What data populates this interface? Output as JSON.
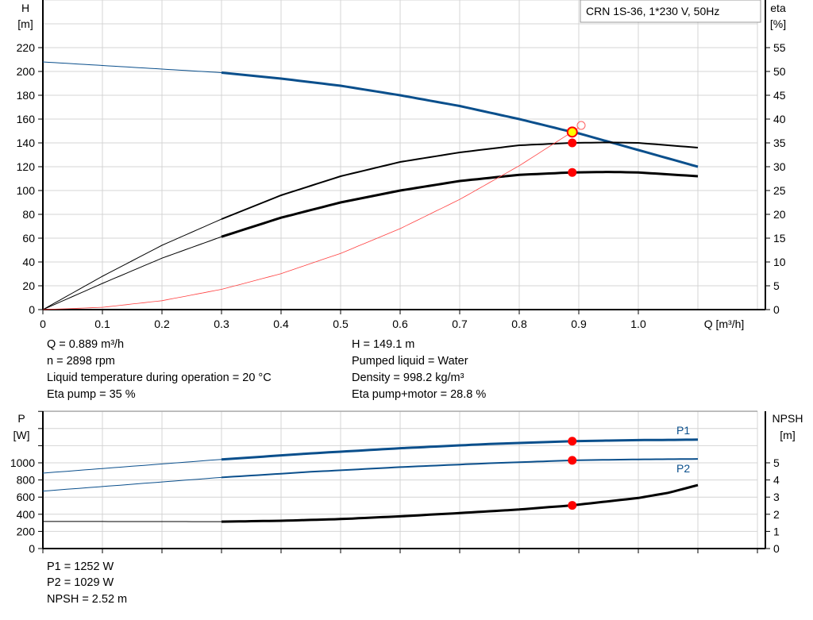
{
  "chart_data": [
    {
      "type": "line",
      "legend_box": "CRN 1S-36, 1*230 V, 50Hz",
      "xlabel": "Q [m³/h]",
      "xlim": [
        0,
        1.2
      ],
      "xticks": [
        "0",
        "0.1",
        "0.2",
        "0.3",
        "0.4",
        "0.5",
        "0.6",
        "0.7",
        "0.8",
        "0.9",
        "1.0"
      ],
      "y_left": {
        "label": "H",
        "unit": "[m]",
        "lim": [
          0,
          240
        ],
        "ticks": [
          "0",
          "20",
          "40",
          "60",
          "80",
          "100",
          "120",
          "140",
          "160",
          "180",
          "200",
          "220"
        ]
      },
      "y_right": {
        "label": "eta",
        "unit": "[%]",
        "lim": [
          0,
          60
        ],
        "ticks": [
          "0",
          "5",
          "10",
          "15",
          "20",
          "25",
          "30",
          "35",
          "40",
          "45",
          "50",
          "55"
        ]
      },
      "grid": true,
      "series": [
        {
          "axis": "left",
          "color": "#0a4f8c",
          "x": [
            0,
            0.1,
            0.2,
            0.3,
            0.4,
            0.5,
            0.6,
            0.7,
            0.8,
            0.889,
            0.9,
            1.0,
            1.1
          ],
          "y": [
            208,
            205,
            202,
            199,
            194,
            188,
            180,
            171,
            160,
            149.1,
            148,
            134,
            120
          ]
        },
        {
          "axis": "right",
          "color": "#000000",
          "x": [
            0,
            0.1,
            0.2,
            0.3,
            0.4,
            0.5,
            0.6,
            0.7,
            0.8,
            0.889,
            0.95,
            1.0,
            1.1
          ],
          "y": [
            0,
            7,
            13.5,
            19,
            24,
            28,
            31,
            33,
            34.5,
            35,
            35.1,
            35,
            34
          ]
        },
        {
          "axis": "right",
          "color": "#000000",
          "x": [
            0,
            0.1,
            0.2,
            0.3,
            0.4,
            0.5,
            0.6,
            0.7,
            0.8,
            0.889,
            0.95,
            1.0,
            1.1
          ],
          "y": [
            0,
            5.5,
            10.8,
            15.3,
            19.3,
            22.5,
            25,
            27,
            28.3,
            28.8,
            28.9,
            28.8,
            28
          ]
        },
        {
          "axis": "left",
          "color": "#ff4040",
          "x": [
            0,
            0.1,
            0.2,
            0.3,
            0.4,
            0.5,
            0.6,
            0.7,
            0.8,
            0.9
          ],
          "y": [
            0,
            1.9,
            7.5,
            17,
            30.2,
            47.2,
            68,
            92.5,
            120.8,
            152.8
          ]
        }
      ],
      "duty_point": {
        "Q": 0.889,
        "H": 149.1,
        "eta_pump": 35,
        "eta_total": 28.8
      }
    },
    {
      "type": "line",
      "xlim": [
        0,
        1.2
      ],
      "y_left": {
        "label": "P",
        "unit": "[W]",
        "lim": [
          0,
          1600
        ],
        "ticks": [
          "0",
          "200",
          "400",
          "600",
          "800",
          "1000"
        ]
      },
      "y_right": {
        "label": "NPSH",
        "unit": "[m]",
        "lim": [
          0,
          8
        ],
        "ticks": [
          "0",
          "1",
          "2",
          "3",
          "4",
          "5"
        ]
      },
      "grid": true,
      "series": [
        {
          "name": "P1",
          "axis": "left",
          "color": "#0a4f8c",
          "x": [
            0,
            0.3,
            0.45,
            0.6,
            0.75,
            0.889,
            1.0,
            1.1
          ],
          "y": [
            880,
            1040,
            1110,
            1170,
            1220,
            1252,
            1265,
            1270
          ]
        },
        {
          "name": "P2",
          "axis": "left",
          "color": "#0a4f8c",
          "x": [
            0,
            0.3,
            0.45,
            0.6,
            0.75,
            0.889,
            1.0,
            1.1
          ],
          "y": [
            670,
            830,
            895,
            950,
            995,
            1029,
            1040,
            1045
          ]
        },
        {
          "axis": "right",
          "color": "#000000",
          "x": [
            0,
            0.3,
            0.4,
            0.5,
            0.6,
            0.7,
            0.8,
            0.889,
            1.0,
            1.05,
            1.1
          ],
          "y": [
            1.58,
            1.57,
            1.62,
            1.72,
            1.88,
            2.07,
            2.28,
            2.52,
            2.95,
            3.25,
            3.7
          ]
        }
      ],
      "duty_point": {
        "Q": 0.889,
        "P1": 1252,
        "P2": 1029,
        "NPSH": 2.52
      }
    }
  ],
  "info": {
    "left": [
      "Q = 0.889 m³/h",
      "n = 2898 rpm",
      "Liquid temperature during operation = 20 °C",
      "Eta pump = 35 %"
    ],
    "right": [
      "H = 149.1 m",
      "Pumped liquid = Water",
      "Density = 998.2 kg/m³",
      "Eta pump+motor = 28.8 %"
    ],
    "bottom": [
      "P1 = 1252 W",
      "P2 = 1029 W",
      "NPSH = 2.52 m"
    ]
  }
}
